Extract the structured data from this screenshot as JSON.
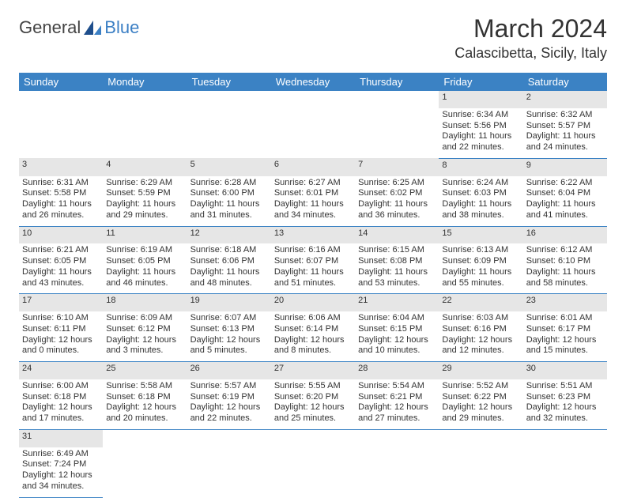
{
  "logo": {
    "general": "General",
    "blue": "Blue"
  },
  "title": "March 2024",
  "location": "Calascibetta, Sicily, Italy",
  "colors": {
    "header_bg": "#3b82c4",
    "header_fg": "#ffffff",
    "daynum_bg": "#e6e6e6",
    "border": "#3b82c4",
    "text": "#333333",
    "logo_blue": "#3b7fc4"
  },
  "weekdays": [
    "Sunday",
    "Monday",
    "Tuesday",
    "Wednesday",
    "Thursday",
    "Friday",
    "Saturday"
  ],
  "weeks": [
    [
      null,
      null,
      null,
      null,
      null,
      {
        "n": "1",
        "sunrise": "6:34 AM",
        "sunset": "5:56 PM",
        "daylight": "11 hours and 22 minutes."
      },
      {
        "n": "2",
        "sunrise": "6:32 AM",
        "sunset": "5:57 PM",
        "daylight": "11 hours and 24 minutes."
      }
    ],
    [
      {
        "n": "3",
        "sunrise": "6:31 AM",
        "sunset": "5:58 PM",
        "daylight": "11 hours and 26 minutes."
      },
      {
        "n": "4",
        "sunrise": "6:29 AM",
        "sunset": "5:59 PM",
        "daylight": "11 hours and 29 minutes."
      },
      {
        "n": "5",
        "sunrise": "6:28 AM",
        "sunset": "6:00 PM",
        "daylight": "11 hours and 31 minutes."
      },
      {
        "n": "6",
        "sunrise": "6:27 AM",
        "sunset": "6:01 PM",
        "daylight": "11 hours and 34 minutes."
      },
      {
        "n": "7",
        "sunrise": "6:25 AM",
        "sunset": "6:02 PM",
        "daylight": "11 hours and 36 minutes."
      },
      {
        "n": "8",
        "sunrise": "6:24 AM",
        "sunset": "6:03 PM",
        "daylight": "11 hours and 38 minutes."
      },
      {
        "n": "9",
        "sunrise": "6:22 AM",
        "sunset": "6:04 PM",
        "daylight": "11 hours and 41 minutes."
      }
    ],
    [
      {
        "n": "10",
        "sunrise": "6:21 AM",
        "sunset": "6:05 PM",
        "daylight": "11 hours and 43 minutes."
      },
      {
        "n": "11",
        "sunrise": "6:19 AM",
        "sunset": "6:05 PM",
        "daylight": "11 hours and 46 minutes."
      },
      {
        "n": "12",
        "sunrise": "6:18 AM",
        "sunset": "6:06 PM",
        "daylight": "11 hours and 48 minutes."
      },
      {
        "n": "13",
        "sunrise": "6:16 AM",
        "sunset": "6:07 PM",
        "daylight": "11 hours and 51 minutes."
      },
      {
        "n": "14",
        "sunrise": "6:15 AM",
        "sunset": "6:08 PM",
        "daylight": "11 hours and 53 minutes."
      },
      {
        "n": "15",
        "sunrise": "6:13 AM",
        "sunset": "6:09 PM",
        "daylight": "11 hours and 55 minutes."
      },
      {
        "n": "16",
        "sunrise": "6:12 AM",
        "sunset": "6:10 PM",
        "daylight": "11 hours and 58 minutes."
      }
    ],
    [
      {
        "n": "17",
        "sunrise": "6:10 AM",
        "sunset": "6:11 PM",
        "daylight": "12 hours and 0 minutes."
      },
      {
        "n": "18",
        "sunrise": "6:09 AM",
        "sunset": "6:12 PM",
        "daylight": "12 hours and 3 minutes."
      },
      {
        "n": "19",
        "sunrise": "6:07 AM",
        "sunset": "6:13 PM",
        "daylight": "12 hours and 5 minutes."
      },
      {
        "n": "20",
        "sunrise": "6:06 AM",
        "sunset": "6:14 PM",
        "daylight": "12 hours and 8 minutes."
      },
      {
        "n": "21",
        "sunrise": "6:04 AM",
        "sunset": "6:15 PM",
        "daylight": "12 hours and 10 minutes."
      },
      {
        "n": "22",
        "sunrise": "6:03 AM",
        "sunset": "6:16 PM",
        "daylight": "12 hours and 12 minutes."
      },
      {
        "n": "23",
        "sunrise": "6:01 AM",
        "sunset": "6:17 PM",
        "daylight": "12 hours and 15 minutes."
      }
    ],
    [
      {
        "n": "24",
        "sunrise": "6:00 AM",
        "sunset": "6:18 PM",
        "daylight": "12 hours and 17 minutes."
      },
      {
        "n": "25",
        "sunrise": "5:58 AM",
        "sunset": "6:18 PM",
        "daylight": "12 hours and 20 minutes."
      },
      {
        "n": "26",
        "sunrise": "5:57 AM",
        "sunset": "6:19 PM",
        "daylight": "12 hours and 22 minutes."
      },
      {
        "n": "27",
        "sunrise": "5:55 AM",
        "sunset": "6:20 PM",
        "daylight": "12 hours and 25 minutes."
      },
      {
        "n": "28",
        "sunrise": "5:54 AM",
        "sunset": "6:21 PM",
        "daylight": "12 hours and 27 minutes."
      },
      {
        "n": "29",
        "sunrise": "5:52 AM",
        "sunset": "6:22 PM",
        "daylight": "12 hours and 29 minutes."
      },
      {
        "n": "30",
        "sunrise": "5:51 AM",
        "sunset": "6:23 PM",
        "daylight": "12 hours and 32 minutes."
      }
    ],
    [
      {
        "n": "31",
        "sunrise": "6:49 AM",
        "sunset": "7:24 PM",
        "daylight": "12 hours and 34 minutes."
      },
      null,
      null,
      null,
      null,
      null,
      null
    ]
  ],
  "labels": {
    "sunrise": "Sunrise: ",
    "sunset": "Sunset: ",
    "daylight": "Daylight: "
  }
}
